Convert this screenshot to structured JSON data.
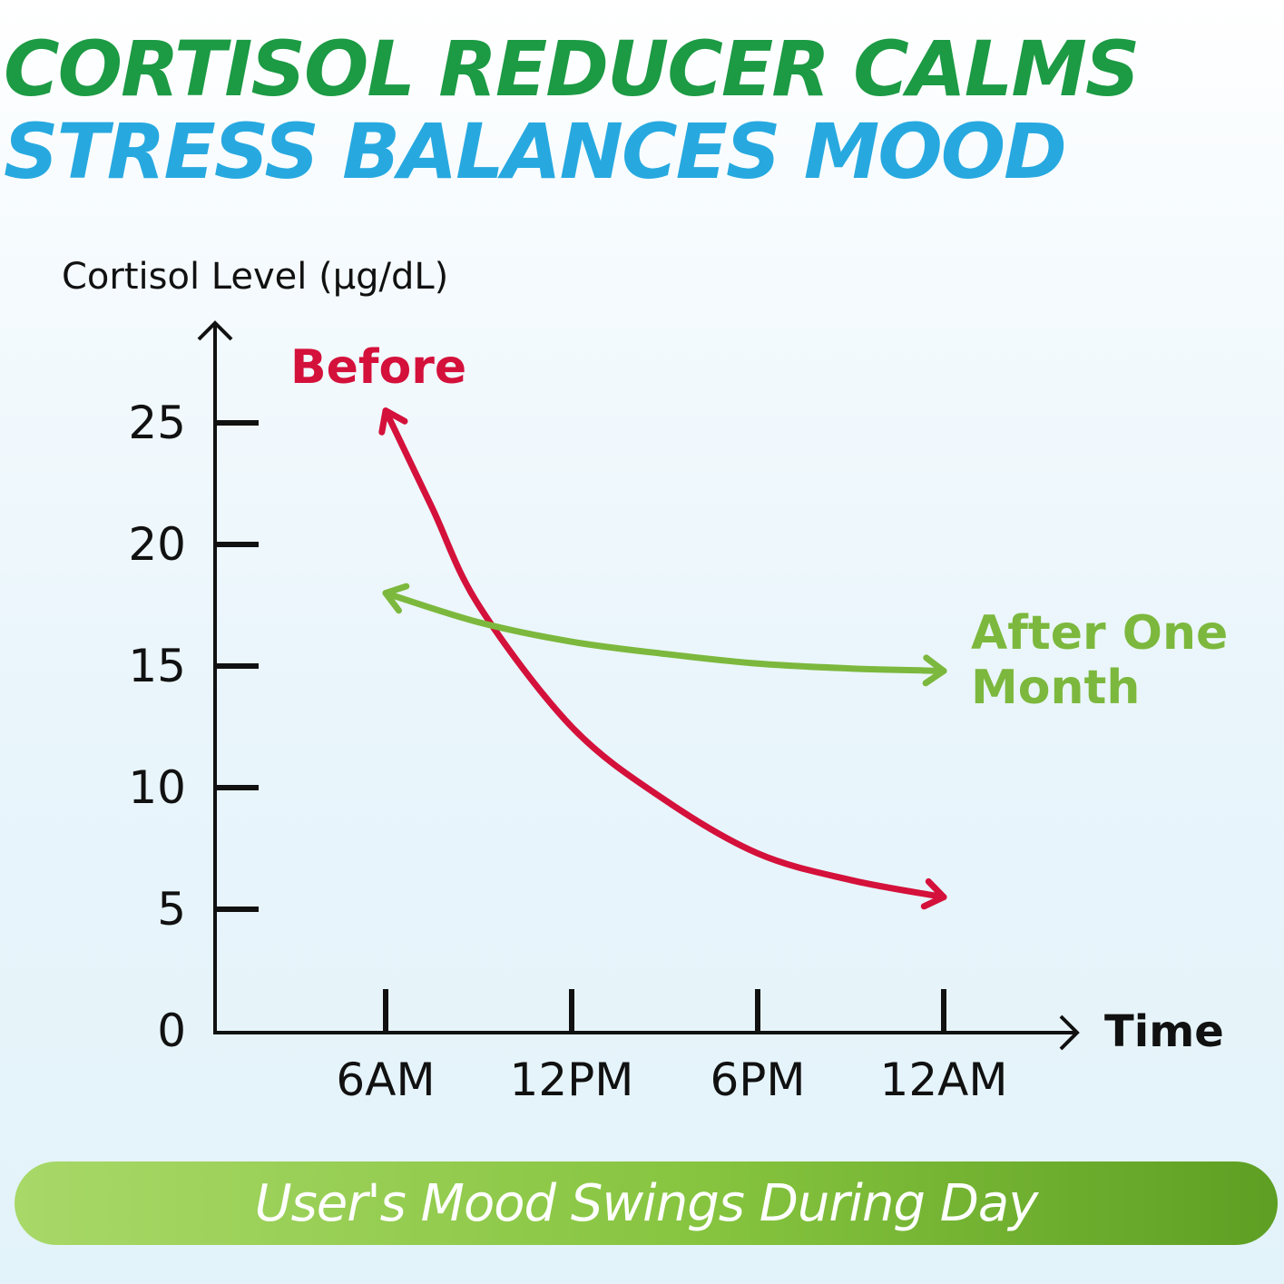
{
  "headline": {
    "line1": "CORTISOL REDUCER CALMS",
    "line2": "STRESS BALANCES MOOD",
    "line1_color": "#1c9a44",
    "line2_color": "#27a9e0"
  },
  "banner": {
    "text": "User's Mood Swings During Day"
  },
  "chart_data": {
    "type": "line",
    "title": "",
    "ylabel": "Cortisol Level (μg/dL)",
    "xlabel": "Time",
    "ylim": [
      0,
      28
    ],
    "yticks": [
      0,
      5,
      10,
      15,
      20,
      25
    ],
    "categories": [
      "6AM",
      "12PM",
      "6PM",
      "12AM"
    ],
    "grid": false,
    "series": [
      {
        "name": "Before",
        "color": "#d4113b",
        "x": [
          0,
          0.25,
          0.5,
          1,
          1.5,
          2,
          2.5,
          3
        ],
        "y": [
          25.5,
          21.5,
          17.5,
          12.5,
          9.5,
          7.3,
          6.2,
          5.5
        ]
      },
      {
        "name": "After One Month",
        "name_lines": [
          "After One",
          "Month"
        ],
        "color": "#7cb83d",
        "x": [
          0,
          0.5,
          1,
          1.5,
          2,
          2.5,
          3
        ],
        "y": [
          18,
          16.8,
          16.0,
          15.5,
          15.1,
          14.9,
          14.8
        ]
      }
    ]
  }
}
